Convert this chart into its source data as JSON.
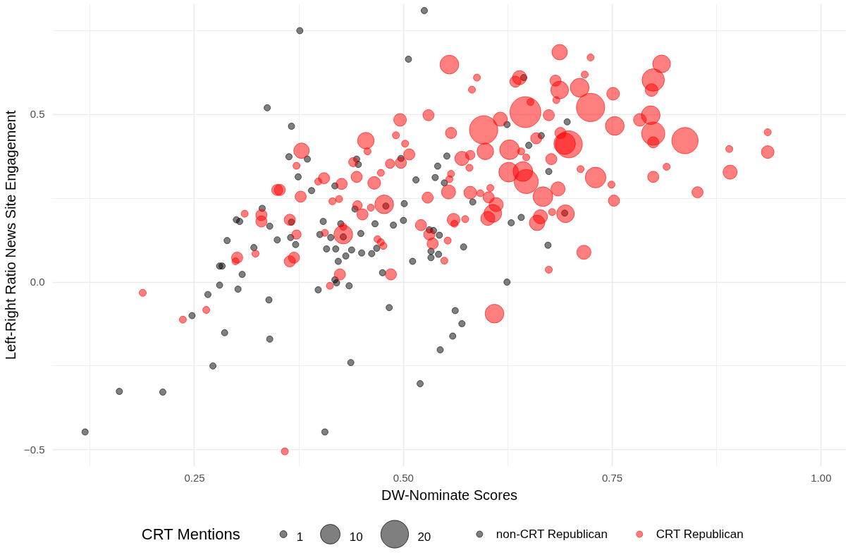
{
  "chart_data": {
    "type": "bubble",
    "xlabel": "DW-Nominate Scores",
    "ylabel": "Left-Right Ratio News Site Engagement",
    "legend_title": "CRT Mentions",
    "size_legend": [
      1,
      10,
      20
    ],
    "xlim": [
      0.08,
      1.03
    ],
    "ylim": [
      -0.55,
      0.83
    ],
    "xticks": [
      0.25,
      {
        "value": 0.5,
        "label": "0.50"
      },
      0.75,
      {
        "value": 1.0,
        "label": "1.00"
      }
    ],
    "yticks": [
      -0.5,
      {
        "value": 0,
        "label": "0.0"
      },
      0.5
    ],
    "grid": true,
    "legend": "bottom",
    "marker": "circle",
    "series": [
      {
        "name": "non-CRT Republican",
        "type": "scatter",
        "color": "#000000",
        "x": [
          0.525,
          0.376,
          0.506,
          0.337,
          0.366,
          0.363,
          0.385,
          0.374,
          0.39,
          0.418,
          0.444,
          0.446,
          0.497,
          0.501,
          0.5,
          0.488,
          0.466,
          0.442,
          0.404,
          0.331,
          0.3,
          0.304,
          0.34,
          0.366,
          0.349,
          0.365,
          0.371,
          0.4,
          0.413,
          0.425,
          0.428,
          0.449,
          0.408,
          0.419,
          0.438,
          0.431,
          0.422,
          0.45,
          0.462,
          0.468,
          0.289,
          0.321,
          0.28,
          0.283,
          0.307,
          0.28,
          0.302,
          0.475,
          0.398,
          0.418,
          0.42,
          0.435,
          0.266,
          0.247,
          0.286,
          0.339,
          0.34,
          0.272,
          0.16,
          0.212,
          0.119,
          0.406,
          0.483,
          0.562,
          0.544,
          0.437,
          0.52,
          0.644,
          0.624,
          0.696,
          0.665,
          0.65,
          0.552,
          0.541,
          0.515,
          0.538,
          0.549,
          0.674,
          0.479,
          0.583,
          0.693,
          0.531,
          0.536,
          0.543,
          0.572,
          0.533,
          0.533,
          0.542,
          0.511,
          0.629,
          0.641,
          0.673,
          0.624,
          0.559,
          0.57
        ],
        "values": [
          0.81,
          0.75,
          0.665,
          0.52,
          0.465,
          0.374,
          0.367,
          0.314,
          0.273,
          0.287,
          0.367,
          0.351,
          0.369,
          0.234,
          0.184,
          0.17,
          0.174,
          0.218,
          0.181,
          0.22,
          0.186,
          0.181,
          0.167,
          0.179,
          0.126,
          0.133,
          0.112,
          0.142,
          0.133,
          0.174,
          0.135,
          0.145,
          0.099,
          0.099,
          0.096,
          0.078,
          0.062,
          0.087,
          0.085,
          0.101,
          0.124,
          0.103,
          0.048,
          0.048,
          0.023,
          -0.009,
          -0.021,
          0.028,
          -0.023,
          0.007,
          -0.002,
          -0.011,
          -0.037,
          -0.1,
          -0.151,
          -0.053,
          -0.17,
          -0.25,
          -0.326,
          -0.328,
          -0.447,
          -0.447,
          -0.076,
          -0.085,
          -0.202,
          -0.24,
          -0.303,
          0.61,
          0.47,
          0.478,
          0.437,
          0.408,
          0.376,
          0.346,
          0.305,
          0.312,
          0.296,
          0.33,
          0.227,
          0.239,
          0.206,
          0.156,
          0.154,
          0.14,
          0.105,
          0.092,
          0.073,
          0.083,
          0.062,
          0.177,
          0.193,
          0.11,
          0.0,
          -0.161,
          -0.124
        ]
      },
      {
        "name": "CRT Republican",
        "color": "#ff0000",
        "x": [
          0.496,
          0.455,
          0.491,
          0.502,
          0.378,
          0.372,
          0.457,
          0.44,
          0.484,
          0.497,
          0.405,
          0.398,
          0.426,
          0.444,
          0.465,
          0.473,
          0.349,
          0.352,
          0.377,
          0.415,
          0.423,
          0.445,
          0.477,
          0.451,
          0.461,
          0.33,
          0.33,
          0.31,
          0.364,
          0.372,
          0.428,
          0.428,
          0.406,
          0.469,
          0.473,
          0.476,
          0.301,
          0.299,
          0.323,
          0.369,
          0.364,
          0.424,
          0.485,
          0.412,
          0.188,
          0.236,
          0.264,
          0.358,
          0.687,
          0.724,
          0.555,
          0.809,
          0.588,
          0.582,
          0.639,
          0.634,
          0.682,
          0.687,
          0.717,
          0.711,
          0.683,
          0.799,
          0.797,
          0.751,
          0.646,
          0.652,
          0.724,
          0.596,
          0.616,
          0.674,
          0.753,
          0.783,
          0.796,
          0.799,
          0.799,
          0.837,
          0.936,
          0.936,
          0.89,
          0.891,
          0.852,
          0.815,
          0.799,
          0.752,
          0.749,
          0.73,
          0.716,
          0.698,
          0.693,
          0.688,
          0.659,
          0.677,
          0.712,
          0.627,
          0.641,
          0.647,
          0.598,
          0.57,
          0.58,
          0.579,
          0.626,
          0.643,
          0.647,
          0.667,
          0.685,
          0.557,
          0.53,
          0.507,
          0.557,
          0.555,
          0.529,
          0.554,
          0.58,
          0.592,
          0.604,
          0.602,
          0.611,
          0.607,
          0.601,
          0.56,
          0.561,
          0.574,
          0.521,
          0.531,
          0.535,
          0.553,
          0.549,
          0.664,
          0.66,
          0.678,
          0.694,
          0.674,
          0.609
        ],
        "values": [
          0.484,
          0.422,
          0.438,
          0.413,
          0.392,
          0.347,
          0.39,
          0.358,
          0.353,
          0.356,
          0.31,
          0.3,
          0.293,
          0.314,
          0.296,
          0.326,
          0.275,
          0.275,
          0.255,
          0.241,
          0.248,
          0.229,
          0.232,
          0.202,
          0.222,
          0.2,
          0.181,
          0.204,
          0.186,
          0.142,
          0.142,
          0.165,
          0.147,
          0.128,
          0.119,
          0.108,
          0.073,
          0.062,
          0.085,
          0.073,
          0.062,
          0.023,
          0.023,
          -0.011,
          -0.032,
          -0.112,
          -0.083,
          -0.505,
          0.686,
          0.67,
          0.649,
          0.651,
          0.61,
          0.574,
          0.61,
          0.598,
          0.601,
          0.573,
          0.619,
          0.58,
          0.543,
          0.603,
          0.573,
          0.562,
          0.507,
          0.537,
          0.521,
          0.454,
          0.486,
          0.498,
          0.466,
          0.484,
          0.498,
          0.443,
          0.417,
          0.422,
          0.447,
          0.388,
          0.397,
          0.328,
          0.268,
          0.344,
          0.314,
          0.243,
          0.291,
          0.312,
          0.089,
          0.411,
          0.413,
          0.445,
          0.429,
          0.367,
          0.337,
          0.395,
          0.39,
          0.372,
          0.39,
          0.369,
          0.379,
          0.341,
          0.328,
          0.33,
          0.3,
          0.255,
          0.278,
          0.445,
          0.498,
          0.381,
          0.323,
          0.307,
          0.252,
          0.269,
          0.267,
          0.265,
          0.281,
          0.253,
          0.231,
          0.205,
          0.19,
          0.186,
          0.174,
          0.188,
          0.17,
          0.142,
          0.115,
          0.124,
          0.064,
          0.195,
          0.177,
          0.209,
          0.204,
          0.037,
          -0.094
        ],
        "sizes": [
          4,
          7,
          1,
          1,
          6,
          1,
          1,
          2,
          2,
          3,
          3,
          1,
          3,
          3,
          4,
          1,
          3,
          3,
          3,
          1,
          1,
          2,
          9,
          3,
          1,
          3,
          3,
          1,
          3,
          2,
          9,
          1,
          1,
          1,
          1,
          1,
          3,
          1,
          1,
          3,
          3,
          3,
          3,
          1,
          1,
          1,
          1,
          1,
          6,
          1,
          9,
          8,
          1,
          1,
          5,
          3,
          3,
          8,
          1,
          9,
          1,
          13,
          4,
          4,
          25,
          1,
          21,
          21,
          5,
          3,
          9,
          4,
          9,
          14,
          3,
          18,
          1,
          4,
          1,
          5,
          3,
          1,
          3,
          3,
          1,
          11,
          5,
          19,
          12,
          3,
          3,
          3,
          1,
          10,
          1,
          1,
          7,
          5,
          2,
          1,
          10,
          10,
          15,
          10,
          5,
          3,
          3,
          3,
          1,
          1,
          3,
          5,
          4,
          1,
          1,
          3,
          5,
          8,
          5,
          4,
          1,
          1,
          3,
          3,
          3,
          1,
          1,
          5,
          6,
          1,
          8,
          1,
          9
        ]
      }
    ]
  }
}
